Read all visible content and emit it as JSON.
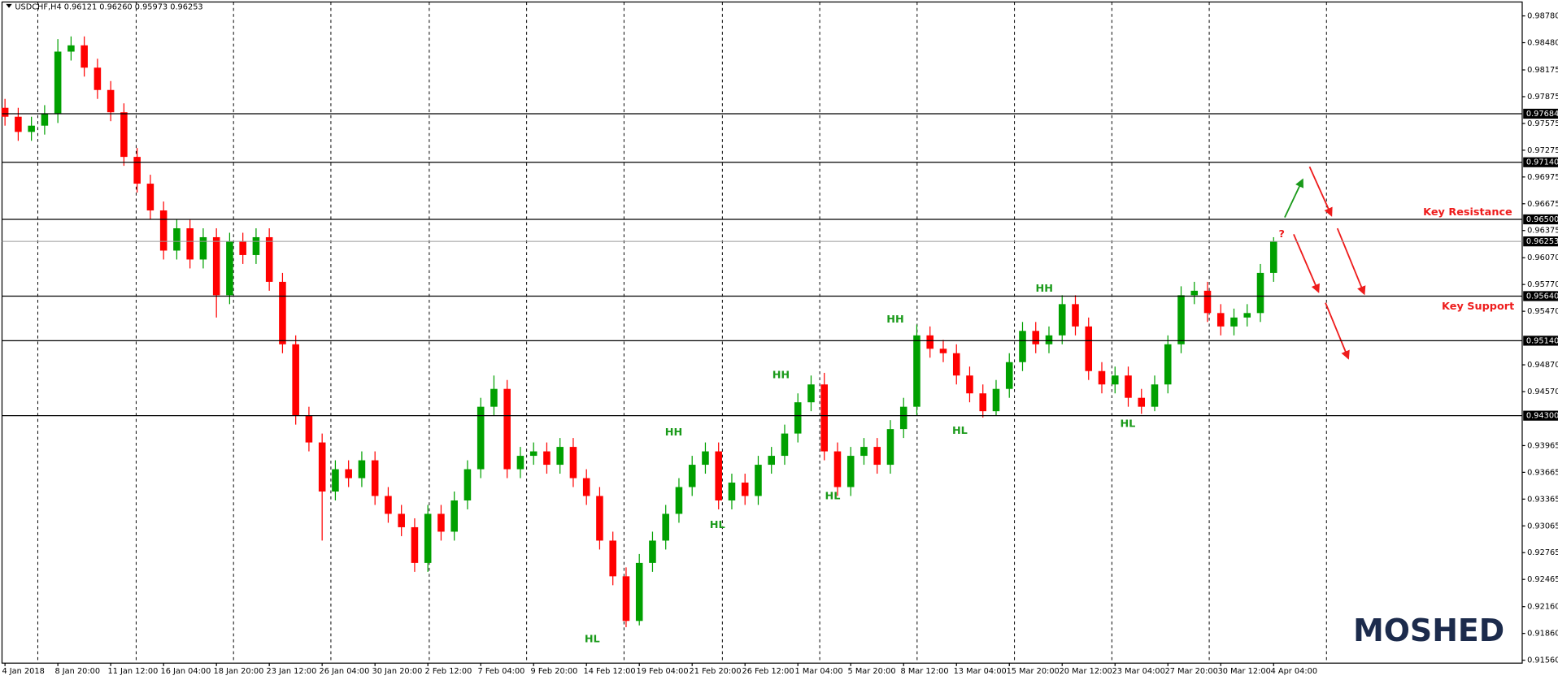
{
  "chart_data": {
    "type": "candlestick",
    "header": "USDCHF,H4  0.96121 0.96260 0.95973 0.96253",
    "categories": [
      "4 Jan 2018",
      null,
      null,
      null,
      "8 Jan 20:00",
      null,
      null,
      null,
      "11 Jan 12:00",
      null,
      null,
      null,
      "16 Jan 04:00",
      null,
      null,
      null,
      "18 Jan 20:00",
      null,
      null,
      null,
      "23 Jan 12:00",
      null,
      null,
      null,
      "26 Jan 04:00",
      null,
      null,
      null,
      "30 Jan 20:00",
      null,
      null,
      null,
      "2 Feb 12:00",
      null,
      null,
      null,
      "7 Feb 04:00",
      null,
      null,
      null,
      "9 Feb 20:00",
      null,
      null,
      null,
      "14 Feb 12:00",
      null,
      null,
      null,
      "19 Feb 04:00",
      null,
      null,
      null,
      "21 Feb 20:00",
      null,
      null,
      null,
      "26 Feb 12:00",
      null,
      null,
      null,
      "1 Mar 04:00",
      null,
      null,
      null,
      "5 Mar 20:00",
      null,
      null,
      null,
      "8 Mar 12:00",
      null,
      null,
      null,
      "13 Mar 04:00",
      null,
      null,
      null,
      "15 Mar 20:00",
      null,
      null,
      null,
      "20 Mar 12:00",
      null,
      null,
      null,
      "23 Mar 04:00",
      null,
      null,
      null,
      "27 Mar 20:00",
      null,
      null,
      null,
      "30 Mar 12:00",
      null,
      null,
      null,
      "4 Apr 04:00"
    ],
    "open": [
      0.9775,
      0.9765,
      0.9748,
      0.9755,
      0.9768,
      0.9838,
      0.9845,
      0.982,
      0.9795,
      0.977,
      0.972,
      0.969,
      0.966,
      0.9615,
      0.964,
      0.9605,
      0.963,
      0.9565,
      0.9625,
      0.961,
      0.963,
      0.958,
      0.951,
      0.943,
      0.94,
      0.9345,
      0.937,
      0.936,
      0.938,
      0.934,
      0.932,
      0.9305,
      0.9265,
      0.932,
      0.93,
      0.9335,
      0.937,
      0.944,
      0.946,
      0.937,
      0.9385,
      0.939,
      0.9375,
      0.9395,
      0.936,
      0.934,
      0.929,
      0.925,
      0.92,
      0.9265,
      0.929,
      0.932,
      0.935,
      0.9375,
      0.939,
      0.9335,
      0.9355,
      0.934,
      0.9375,
      0.9385,
      0.941,
      0.9445,
      0.9465,
      0.939,
      0.935,
      0.9385,
      0.9395,
      0.9375,
      0.9415,
      0.944,
      0.952,
      0.9505,
      0.95,
      0.9475,
      0.9455,
      0.9435,
      0.946,
      0.949,
      0.9525,
      0.951,
      0.952,
      0.9555,
      0.953,
      0.948,
      0.9465,
      0.9475,
      0.945,
      0.944,
      0.9465,
      0.951,
      0.9565,
      0.957,
      0.9545,
      0.953,
      0.954,
      0.9545,
      0.959
    ],
    "high": [
      0.9785,
      0.9775,
      0.9765,
      0.9778,
      0.9852,
      0.9855,
      0.9855,
      0.983,
      0.9805,
      0.978,
      0.973,
      0.97,
      0.967,
      0.965,
      0.965,
      0.964,
      0.964,
      0.9635,
      0.9635,
      0.964,
      0.964,
      0.959,
      0.952,
      0.944,
      0.941,
      0.938,
      0.938,
      0.939,
      0.939,
      0.935,
      0.933,
      0.9315,
      0.933,
      0.933,
      0.9345,
      0.938,
      0.945,
      0.9475,
      0.947,
      0.9395,
      0.94,
      0.94,
      0.9405,
      0.9405,
      0.937,
      0.935,
      0.93,
      0.926,
      0.9275,
      0.93,
      0.933,
      0.936,
      0.9385,
      0.94,
      0.94,
      0.9365,
      0.9365,
      0.9385,
      0.9395,
      0.942,
      0.9455,
      0.9475,
      0.9478,
      0.94,
      0.9395,
      0.9405,
      0.9405,
      0.9425,
      0.945,
      0.9532,
      0.953,
      0.9515,
      0.951,
      0.9485,
      0.9465,
      0.947,
      0.95,
      0.9535,
      0.9535,
      0.953,
      0.9565,
      0.9565,
      0.954,
      0.949,
      0.9485,
      0.9485,
      0.946,
      0.9475,
      0.952,
      0.9575,
      0.958,
      0.958,
      0.9555,
      0.955,
      0.9555,
      0.96,
      0.963
    ],
    "low": [
      0.9755,
      0.9738,
      0.9738,
      0.9745,
      0.9758,
      0.9828,
      0.981,
      0.9785,
      0.976,
      0.971,
      0.968,
      0.965,
      0.9605,
      0.9605,
      0.9595,
      0.9595,
      0.954,
      0.9555,
      0.96,
      0.96,
      0.957,
      0.95,
      0.942,
      0.939,
      0.929,
      0.9335,
      0.935,
      0.935,
      0.933,
      0.931,
      0.9295,
      0.9255,
      0.9255,
      0.929,
      0.929,
      0.9325,
      0.936,
      0.943,
      0.936,
      0.936,
      0.9375,
      0.9365,
      0.9365,
      0.935,
      0.933,
      0.928,
      0.924,
      0.9193,
      0.9195,
      0.9255,
      0.928,
      0.931,
      0.934,
      0.9365,
      0.9325,
      0.9325,
      0.933,
      0.933,
      0.9365,
      0.9375,
      0.94,
      0.9435,
      0.938,
      0.934,
      0.934,
      0.9375,
      0.9365,
      0.9365,
      0.9405,
      0.943,
      0.9495,
      0.949,
      0.9465,
      0.9445,
      0.9428,
      0.943,
      0.945,
      0.948,
      0.95,
      0.95,
      0.951,
      0.952,
      0.947,
      0.9455,
      0.9455,
      0.944,
      0.9432,
      0.9435,
      0.9455,
      0.95,
      0.9555,
      0.9535,
      0.952,
      0.952,
      0.953,
      0.9535,
      0.958
    ],
    "close": [
      0.9765,
      0.9748,
      0.9755,
      0.9768,
      0.9838,
      0.9845,
      0.982,
      0.9795,
      0.977,
      0.972,
      0.969,
      0.966,
      0.9615,
      0.964,
      0.9605,
      0.963,
      0.9565,
      0.9625,
      0.961,
      0.963,
      0.958,
      0.951,
      0.943,
      0.94,
      0.9345,
      0.937,
      0.936,
      0.938,
      0.934,
      0.932,
      0.9305,
      0.9265,
      0.932,
      0.93,
      0.9335,
      0.937,
      0.944,
      0.946,
      0.937,
      0.9385,
      0.939,
      0.9375,
      0.9395,
      0.936,
      0.934,
      0.929,
      0.925,
      0.92,
      0.9265,
      0.929,
      0.932,
      0.935,
      0.9375,
      0.939,
      0.9335,
      0.9355,
      0.934,
      0.9375,
      0.9385,
      0.941,
      0.9445,
      0.9465,
      0.939,
      0.935,
      0.9385,
      0.9395,
      0.9375,
      0.9415,
      0.944,
      0.952,
      0.9505,
      0.95,
      0.9475,
      0.9455,
      0.9435,
      0.946,
      0.949,
      0.9525,
      0.951,
      0.952,
      0.9555,
      0.953,
      0.948,
      0.9465,
      0.9475,
      0.945,
      0.944,
      0.9465,
      0.951,
      0.9565,
      0.957,
      0.9545,
      0.953,
      0.954,
      0.9545,
      0.959,
      0.9625
    ],
    "up_color": "#00a000",
    "down_color": "#ff0000",
    "ylim": [
      0.91527,
      0.98936
    ],
    "yticks": [
      {
        "value": 0.9878,
        "label": "0.98780"
      },
      {
        "value": 0.9848,
        "label": "0.98480"
      },
      {
        "value": 0.98175,
        "label": "0.98175"
      },
      {
        "value": 0.97875,
        "label": "0.97875"
      },
      {
        "value": 0.97575,
        "label": "0.97575"
      },
      {
        "value": 0.97275,
        "label": "0.97275"
      },
      {
        "value": 0.96975,
        "label": "0.96975"
      },
      {
        "value": 0.96675,
        "label": "0.96675"
      },
      {
        "value": 0.96375,
        "label": "0.96375"
      },
      {
        "value": 0.9607,
        "label": "0.96070"
      },
      {
        "value": 0.9577,
        "label": "0.95770"
      },
      {
        "value": 0.9547,
        "label": "0.95470"
      },
      {
        "value": 0.9487,
        "label": "0.94870"
      },
      {
        "value": 0.9457,
        "label": "0.94570"
      },
      {
        "value": 0.93965,
        "label": "0.93965"
      },
      {
        "value": 0.93665,
        "label": "0.93665"
      },
      {
        "value": 0.93365,
        "label": "0.93365"
      },
      {
        "value": 0.93065,
        "label": "0.93065"
      },
      {
        "value": 0.92765,
        "label": "0.92765"
      },
      {
        "value": 0.92465,
        "label": "0.92465"
      },
      {
        "value": 0.9216,
        "label": "0.92160"
      },
      {
        "value": 0.9186,
        "label": "0.91860"
      },
      {
        "value": 0.9156,
        "label": "0.91560"
      }
    ],
    "levels": [
      {
        "value": 0.97684,
        "label": "0.97684"
      },
      {
        "value": 0.9714,
        "label": "0.97140"
      },
      {
        "value": 0.965,
        "label": "0.96500"
      },
      {
        "value": 0.9564,
        "label": "0.95640"
      },
      {
        "value": 0.9514,
        "label": "0.95140"
      },
      {
        "value": 0.943,
        "label": "0.94300"
      }
    ],
    "current_price": {
      "value": 0.96253,
      "label": "0.96253"
    },
    "annotations": [
      "HL",
      "HH",
      "HL",
      "HH",
      "HL",
      "HH",
      "HL",
      "HH",
      "HL"
    ],
    "key_resistance": "Key Resistance",
    "key_support": "Key Support",
    "question": "?",
    "watermark": "MOSHED"
  }
}
